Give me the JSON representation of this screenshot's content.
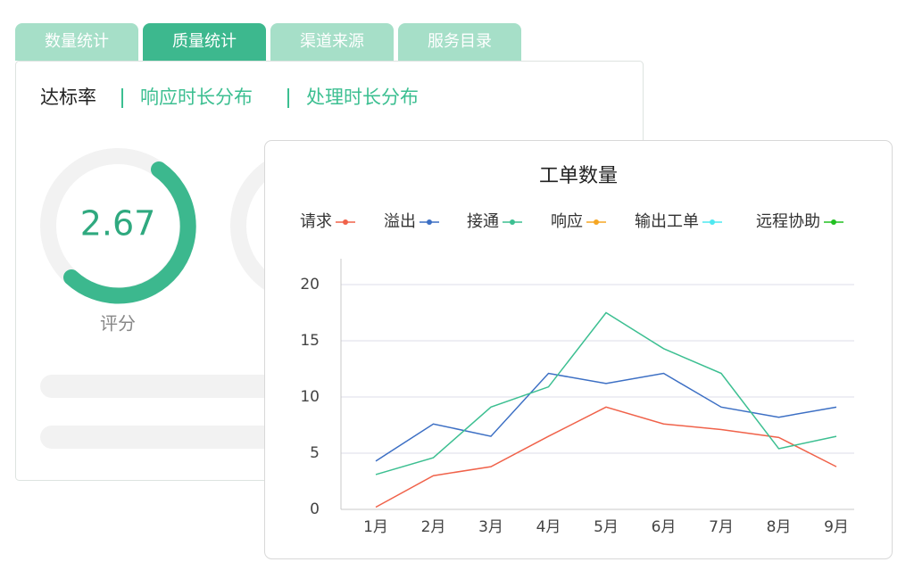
{
  "tabs": [
    "数量统计",
    "质量统计",
    "渠道来源",
    "服务目录"
  ],
  "subtabs": [
    "达标率",
    "响应时长分布",
    "处理时长分布"
  ],
  "gauge": {
    "value": "2.67",
    "label": "评分"
  },
  "chart_data": {
    "type": "line",
    "title": "工单数量",
    "categories": [
      "1月",
      "2月",
      "3月",
      "4月",
      "5月",
      "6月",
      "7月",
      "8月",
      "9月"
    ],
    "series": [
      {
        "name": "请求",
        "color": "#f0624a",
        "values": [
          0.2,
          3.0,
          3.8,
          6.5,
          9.1,
          7.6,
          7.1,
          6.4,
          3.8
        ]
      },
      {
        "name": "溢出",
        "color": "#3c6fc4",
        "values": [
          4.3,
          7.6,
          6.5,
          12.1,
          11.2,
          12.1,
          9.1,
          8.2,
          9.1
        ]
      },
      {
        "name": "接通",
        "color": "#3cbf91",
        "values": [
          3.1,
          4.6,
          9.1,
          10.9,
          17.5,
          14.3,
          12.1,
          5.4,
          6.5
        ]
      },
      {
        "name": "响应",
        "color": "#f5a623",
        "values": [
          null,
          null,
          null,
          null,
          null,
          null,
          null,
          null,
          null
        ]
      },
      {
        "name": "输出工单",
        "color": "#4ee8f0",
        "values": [
          null,
          null,
          null,
          null,
          null,
          null,
          null,
          null,
          null
        ]
      },
      {
        "name": "远程协助",
        "color": "#22c022",
        "values": [
          null,
          null,
          null,
          null,
          null,
          null,
          null,
          null,
          null
        ]
      }
    ],
    "ylim": [
      0,
      20
    ],
    "yticks": [
      0,
      5,
      10,
      15,
      20
    ],
    "grid": true
  }
}
